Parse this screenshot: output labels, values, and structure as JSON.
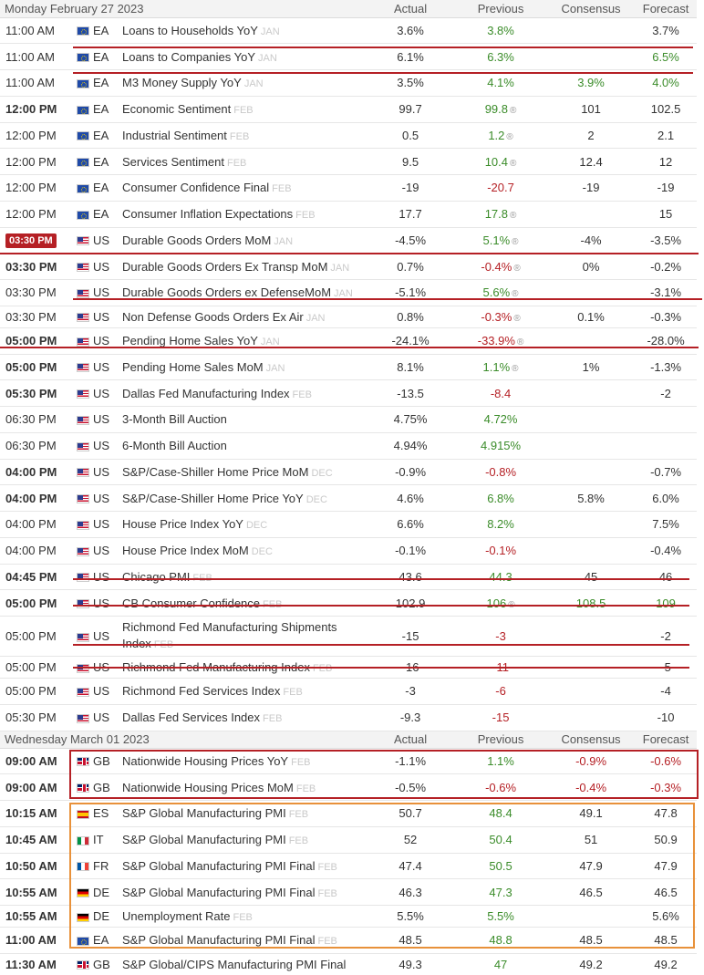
{
  "sections": [
    {
      "date": "Monday February 27 2023",
      "columns": [
        "Actual",
        "Previous",
        "Consensus",
        "Forecast"
      ],
      "rows": [
        {
          "time": "11:00 AM",
          "bold": false,
          "flag": "ea",
          "country": "EA",
          "event": "Loans to Households YoY",
          "period": "JAN",
          "actual": "3.6%",
          "previous": "3.8%",
          "prev_color": "g",
          "revised": false,
          "consensus": "",
          "cons_color": "",
          "forecast": "3.7%",
          "fc_color": ""
        },
        {
          "time": "11:00 AM",
          "bold": false,
          "flag": "ea",
          "country": "EA",
          "event": "Loans to Companies YoY",
          "period": "JAN",
          "actual": "6.1%",
          "previous": "6.3%",
          "prev_color": "g",
          "revised": false,
          "consensus": "",
          "cons_color": "",
          "forecast": "6.5%",
          "fc_color": "g"
        },
        {
          "time": "11:00 AM",
          "bold": false,
          "flag": "ea",
          "country": "EA",
          "event": "M3 Money Supply YoY",
          "period": "JAN",
          "actual": "3.5%",
          "previous": "4.1%",
          "prev_color": "g",
          "revised": false,
          "consensus": "3.9%",
          "cons_color": "g",
          "forecast": "4.0%",
          "fc_color": "g"
        },
        {
          "time": "12:00 PM",
          "bold": true,
          "flag": "ea",
          "country": "EA",
          "event": "Economic Sentiment",
          "period": "FEB",
          "actual": "99.7",
          "previous": "99.8",
          "prev_color": "g",
          "revised": true,
          "consensus": "101",
          "cons_color": "",
          "forecast": "102.5",
          "fc_color": ""
        },
        {
          "time": "12:00 PM",
          "bold": false,
          "flag": "ea",
          "country": "EA",
          "event": "Industrial Sentiment",
          "period": "FEB",
          "actual": "0.5",
          "previous": "1.2",
          "prev_color": "g",
          "revised": true,
          "consensus": "2",
          "cons_color": "",
          "forecast": "2.1",
          "fc_color": ""
        },
        {
          "time": "12:00 PM",
          "bold": false,
          "flag": "ea",
          "country": "EA",
          "event": "Services Sentiment",
          "period": "FEB",
          "actual": "9.5",
          "previous": "10.4",
          "prev_color": "g",
          "revised": true,
          "consensus": "12.4",
          "cons_color": "",
          "forecast": "12",
          "fc_color": ""
        },
        {
          "time": "12:00 PM",
          "bold": false,
          "flag": "ea",
          "country": "EA",
          "event": "Consumer Confidence Final",
          "period": "FEB",
          "actual": "-19",
          "previous": "-20.7",
          "prev_color": "r",
          "revised": false,
          "consensus": "-19",
          "cons_color": "",
          "forecast": "-19",
          "fc_color": ""
        },
        {
          "time": "12:00 PM",
          "bold": false,
          "flag": "ea",
          "country": "EA",
          "event": "Consumer Inflation Expectations",
          "period": "FEB",
          "actual": "17.7",
          "previous": "17.8",
          "prev_color": "g",
          "revised": true,
          "consensus": "",
          "cons_color": "",
          "forecast": "15",
          "fc_color": ""
        },
        {
          "time": "03:30 PM",
          "bold": true,
          "badge": true,
          "flag": "us",
          "country": "US",
          "event": "Durable Goods Orders MoM",
          "period": "JAN",
          "actual": "-4.5%",
          "previous": "5.1%",
          "prev_color": "g",
          "revised": true,
          "consensus": "-4%",
          "cons_color": "",
          "forecast": "-3.5%",
          "fc_color": ""
        },
        {
          "time": "03:30 PM",
          "bold": true,
          "flag": "us",
          "country": "US",
          "event": "Durable Goods Orders Ex Transp MoM",
          "period": "JAN",
          "actual": "0.7%",
          "previous": "-0.4%",
          "prev_color": "r",
          "revised": true,
          "consensus": "0%",
          "cons_color": "",
          "forecast": "-0.2%",
          "fc_color": ""
        },
        {
          "time": "03:30 PM",
          "bold": false,
          "flag": "us",
          "country": "US",
          "event": "Durable Goods Orders ex DefenseMoM",
          "period": "JAN",
          "actual": "-5.1%",
          "previous": "5.6%",
          "prev_color": "g",
          "revised": true,
          "consensus": "",
          "cons_color": "",
          "forecast": "-3.1%",
          "fc_color": ""
        },
        {
          "time": "03:30 PM",
          "bold": false,
          "short": true,
          "flag": "us",
          "country": "US",
          "event": "Non Defense Goods Orders Ex Air",
          "period": "JAN",
          "actual": "0.8%",
          "previous": "-0.3%",
          "prev_color": "r",
          "revised": true,
          "consensus": "0.1%",
          "cons_color": "",
          "forecast": "-0.3%",
          "fc_color": ""
        },
        {
          "time": "05:00 PM",
          "bold": true,
          "flag": "us",
          "country": "US",
          "event": "Pending Home Sales YoY",
          "period": "JAN",
          "actual": "-24.1%",
          "previous": "-33.9%",
          "prev_color": "r",
          "revised": true,
          "consensus": "",
          "cons_color": "",
          "forecast": "-28.0%",
          "fc_color": ""
        },
        {
          "time": "05:00 PM",
          "bold": true,
          "flag": "us",
          "country": "US",
          "event": "Pending Home Sales MoM",
          "period": "JAN",
          "actual": "8.1%",
          "previous": "1.1%",
          "prev_color": "g",
          "revised": true,
          "consensus": "1%",
          "cons_color": "",
          "forecast": "-1.3%",
          "fc_color": ""
        },
        {
          "time": "05:30 PM",
          "bold": true,
          "flag": "us",
          "country": "US",
          "event": "Dallas Fed Manufacturing Index",
          "period": "FEB",
          "actual": "-13.5",
          "previous": "-8.4",
          "prev_color": "r",
          "revised": false,
          "consensus": "",
          "cons_color": "",
          "forecast": "-2",
          "fc_color": ""
        },
        {
          "time": "06:30 PM",
          "bold": false,
          "flag": "us",
          "country": "US",
          "event": "3-Month Bill Auction",
          "period": "",
          "actual": "4.75%",
          "previous": "4.72%",
          "prev_color": "g",
          "revised": false,
          "consensus": "",
          "cons_color": "",
          "forecast": "",
          "fc_color": ""
        },
        {
          "time": "06:30 PM",
          "bold": false,
          "flag": "us",
          "country": "US",
          "event": "6-Month Bill Auction",
          "period": "",
          "actual": "4.94%",
          "previous": "4.915%",
          "prev_color": "g",
          "revised": false,
          "consensus": "",
          "cons_color": "",
          "forecast": "",
          "fc_color": ""
        },
        {
          "time": "04:00 PM",
          "bold": true,
          "flag": "us",
          "country": "US",
          "event": "S&P/Case-Shiller Home Price MoM",
          "period": "DEC",
          "actual": "-0.9%",
          "previous": "-0.8%",
          "prev_color": "r",
          "revised": false,
          "consensus": "",
          "cons_color": "",
          "forecast": "-0.7%",
          "fc_color": ""
        },
        {
          "time": "04:00 PM",
          "bold": true,
          "flag": "us",
          "country": "US",
          "event": "S&P/Case-Shiller Home Price YoY",
          "period": "DEC",
          "actual": "4.6%",
          "previous": "6.8%",
          "prev_color": "g",
          "revised": false,
          "consensus": "5.8%",
          "cons_color": "",
          "forecast": "6.0%",
          "fc_color": ""
        },
        {
          "time": "04:00 PM",
          "bold": false,
          "flag": "us",
          "country": "US",
          "event": "House Price Index YoY",
          "period": "DEC",
          "actual": "6.6%",
          "previous": "8.2%",
          "prev_color": "g",
          "revised": false,
          "consensus": "",
          "cons_color": "",
          "forecast": "7.5%",
          "fc_color": ""
        },
        {
          "time": "04:00 PM",
          "bold": false,
          "flag": "us",
          "country": "US",
          "event": "House Price Index MoM",
          "period": "DEC",
          "actual": "-0.1%",
          "previous": "-0.1%",
          "prev_color": "r",
          "revised": false,
          "consensus": "",
          "cons_color": "",
          "forecast": "-0.4%",
          "fc_color": ""
        },
        {
          "time": "04:45 PM",
          "bold": true,
          "flag": "us",
          "country": "US",
          "event": "Chicago PMI",
          "period": "FEB",
          "actual": "43.6",
          "previous": "44.3",
          "prev_color": "g",
          "revised": false,
          "consensus": "45",
          "cons_color": "",
          "forecast": "46",
          "fc_color": ""
        },
        {
          "time": "05:00 PM",
          "bold": true,
          "flag": "us",
          "country": "US",
          "event": "CB Consumer Confidence",
          "period": "FEB",
          "actual": "102.9",
          "previous": "106",
          "prev_color": "g",
          "revised": true,
          "consensus": "108.5",
          "cons_color": "g",
          "forecast": "109",
          "fc_color": "g"
        },
        {
          "time": "05:00 PM",
          "bold": false,
          "tall": true,
          "wrap": true,
          "flag": "us",
          "country": "US",
          "event": "Richmond Fed Manufacturing Shipments Index",
          "period": "FEB",
          "actual": "-15",
          "previous": "-3",
          "prev_color": "r",
          "revised": false,
          "consensus": "",
          "cons_color": "",
          "forecast": "-2",
          "fc_color": ""
        },
        {
          "time": "05:00 PM",
          "bold": false,
          "short": true,
          "flag": "us",
          "country": "US",
          "event": "Richmond Fed Manufacturing Index",
          "period": "FEB",
          "actual": "-16",
          "previous": "-11",
          "prev_color": "r",
          "revised": false,
          "consensus": "",
          "cons_color": "",
          "forecast": "-5",
          "fc_color": ""
        },
        {
          "time": "05:00 PM",
          "bold": false,
          "flag": "us",
          "country": "US",
          "event": "Richmond Fed Services Index",
          "period": "FEB",
          "actual": "-3",
          "previous": "-6",
          "prev_color": "r",
          "revised": false,
          "consensus": "",
          "cons_color": "",
          "forecast": "-4",
          "fc_color": ""
        },
        {
          "time": "05:30 PM",
          "bold": false,
          "flag": "us",
          "country": "US",
          "event": "Dallas Fed Services Index",
          "period": "FEB",
          "actual": "-9.3",
          "previous": "-15",
          "prev_color": "r",
          "revised": false,
          "consensus": "",
          "cons_color": "",
          "forecast": "-10",
          "fc_color": ""
        }
      ]
    },
    {
      "date": "Wednesday March 01 2023",
      "columns": [
        "Actual",
        "Previous",
        "Consensus",
        "Forecast"
      ],
      "rows": [
        {
          "time": "09:00 AM",
          "bold": true,
          "flag": "gb",
          "country": "GB",
          "event": "Nationwide Housing Prices YoY",
          "period": "FEB",
          "actual": "-1.1%",
          "previous": "1.1%",
          "prev_color": "g",
          "revised": false,
          "consensus": "-0.9%",
          "cons_color": "r",
          "forecast": "-0.6%",
          "fc_color": "r"
        },
        {
          "time": "09:00 AM",
          "bold": true,
          "flag": "gb",
          "country": "GB",
          "event": "Nationwide Housing Prices MoM",
          "period": "FEB",
          "actual": "-0.5%",
          "previous": "-0.6%",
          "prev_color": "r",
          "revised": false,
          "consensus": "-0.4%",
          "cons_color": "r",
          "forecast": "-0.3%",
          "fc_color": "r"
        },
        {
          "time": "10:15 AM",
          "bold": true,
          "flag": "es",
          "country": "ES",
          "event": "S&P Global Manufacturing PMI",
          "period": "FEB",
          "actual": "50.7",
          "previous": "48.4",
          "prev_color": "g",
          "revised": false,
          "consensus": "49.1",
          "cons_color": "",
          "forecast": "47.8",
          "fc_color": ""
        },
        {
          "time": "10:45 AM",
          "bold": true,
          "flag": "it",
          "country": "IT",
          "event": "S&P Global Manufacturing PMI",
          "period": "FEB",
          "actual": "52",
          "previous": "50.4",
          "prev_color": "g",
          "revised": false,
          "consensus": "51",
          "cons_color": "",
          "forecast": "50.9",
          "fc_color": ""
        },
        {
          "time": "10:50 AM",
          "bold": true,
          "flag": "fr",
          "country": "FR",
          "event": "S&P Global Manufacturing PMI Final",
          "period": "FEB",
          "actual": "47.4",
          "previous": "50.5",
          "prev_color": "g",
          "revised": false,
          "consensus": "47.9",
          "cons_color": "",
          "forecast": "47.9",
          "fc_color": ""
        },
        {
          "time": "10:55 AM",
          "bold": true,
          "flag": "de",
          "country": "DE",
          "event": "S&P Global Manufacturing PMI Final",
          "period": "FEB",
          "actual": "46.3",
          "previous": "47.3",
          "prev_color": "g",
          "revised": false,
          "consensus": "46.5",
          "cons_color": "",
          "forecast": "46.5",
          "fc_color": ""
        },
        {
          "time": "10:55 AM",
          "bold": true,
          "short": true,
          "flag": "de",
          "country": "DE",
          "event": "Unemployment Rate",
          "period": "FEB",
          "actual": "5.5%",
          "previous": "5.5%",
          "prev_color": "g",
          "revised": false,
          "consensus": "",
          "cons_color": "",
          "forecast": "5.6%",
          "fc_color": ""
        },
        {
          "time": "11:00 AM",
          "bold": true,
          "flag": "ea",
          "country": "EA",
          "event": "S&P Global Manufacturing PMI Final",
          "period": "FEB",
          "actual": "48.5",
          "previous": "48.8",
          "prev_color": "g",
          "revised": false,
          "consensus": "48.5",
          "cons_color": "",
          "forecast": "48.5",
          "fc_color": ""
        },
        {
          "time": "11:30 AM",
          "bold": true,
          "short": true,
          "flag": "gb",
          "country": "GB",
          "event": "S&P Global/CIPS Manufacturing PMI Final",
          "period": "",
          "actual": "49.3",
          "previous": "47",
          "prev_color": "g",
          "revised": false,
          "consensus": "49.2",
          "cons_color": "",
          "forecast": "49.2",
          "fc_color": ""
        }
      ]
    }
  ],
  "revised_mark": "®",
  "annotation_colors": {
    "red": "#b52025",
    "orange": "#e8913a"
  }
}
